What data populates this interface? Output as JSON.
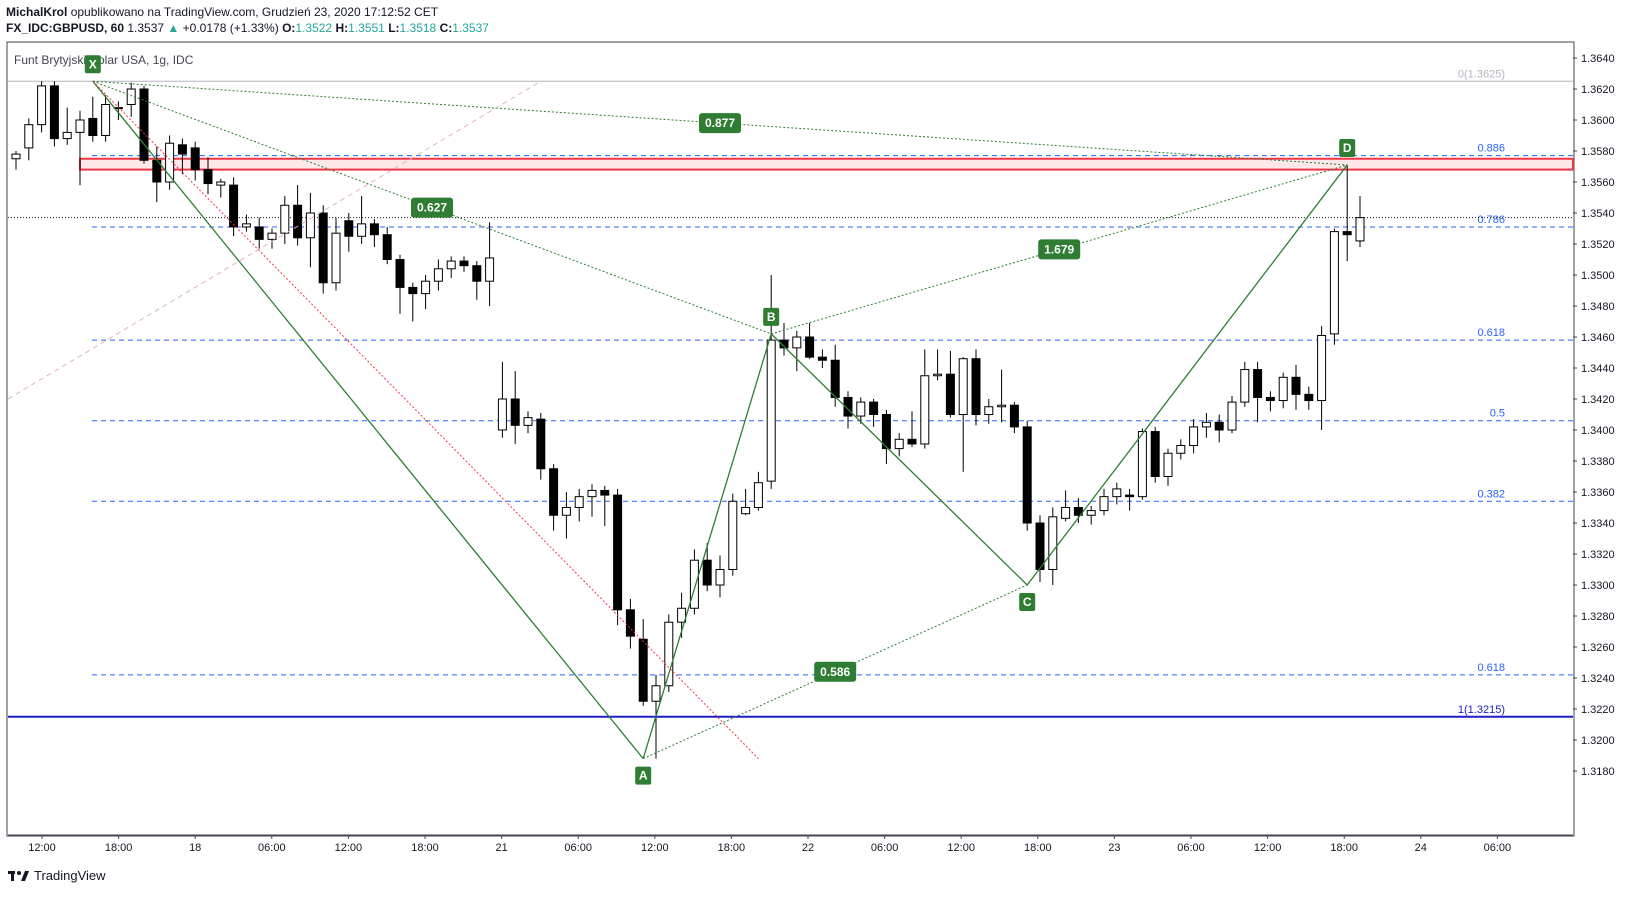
{
  "header": {
    "author": "MichalKrol",
    "published": "opublikowano na TradingView.com, Grudzień 23, 2020 17:12:52 CET",
    "symbol": "FX_IDC:GBPUSD, 60",
    "last": "1.3537",
    "change_arrow": "▲",
    "change": "+0.0178 (+1.33%)",
    "o_label": "O:",
    "o_value": "1.3522",
    "h_label": "H:",
    "h_value": "1.3551",
    "l_label": "L:",
    "l_value": "1.3518",
    "c_label": "C:",
    "c_value": "1.3537"
  },
  "footer": {
    "brand": "TradingView",
    "logo_icon": "tradingview-logo-icon"
  },
  "colors": {
    "up": "#ffffff",
    "down": "#000000",
    "pattern": "#2e7d32",
    "zone": "#f23645",
    "support": "#1e1ec8",
    "fib": "#2962ff"
  },
  "chart_data": {
    "type": "candlestick",
    "title": "Funt Brytyjski/Dolar USA, 1g, IDC",
    "y_ticks": [
      "1.3640",
      "1.3620",
      "1.3600",
      "1.3580",
      "1.3560",
      "1.3540",
      "1.3520",
      "1.3500",
      "1.3480",
      "1.3460",
      "1.3440",
      "1.3420",
      "1.3400",
      "1.3380",
      "1.3360",
      "1.3340",
      "1.3320",
      "1.3300",
      "1.3280",
      "1.3260",
      "1.3240",
      "1.3220",
      "1.3200",
      "1.3180"
    ],
    "ylim": [
      1.3168,
      1.3648
    ],
    "x_ticks": [
      "12:00",
      "18:00",
      "18",
      "06:00",
      "12:00",
      "18:00",
      "21",
      "06:00",
      "12:00",
      "18:00",
      "22",
      "06:00",
      "12:00",
      "18:00",
      "23",
      "06:00",
      "12:00",
      "18:00",
      "24",
      "06:00"
    ],
    "fib_levels": [
      {
        "label": "0(1.3625)",
        "value": 1.3625,
        "style": "solid-gray"
      },
      {
        "label": "0.886",
        "value": 1.3577,
        "style": "dashed"
      },
      {
        "label": "0.786",
        "value": 1.3531,
        "style": "dashed"
      },
      {
        "label": "0.618",
        "value": 1.3458,
        "style": "dashed"
      },
      {
        "label": "0.5",
        "value": 1.3406,
        "style": "dashed"
      },
      {
        "label": "0.382",
        "value": 1.3354,
        "style": "dashed"
      },
      {
        "label": "0.618",
        "value": 1.3242,
        "style": "dashed"
      },
      {
        "label": "1(1.3215)",
        "value": 1.3215,
        "style": "solid-blue"
      }
    ],
    "current_price": 1.3537,
    "resistance_zone": [
      1.3568,
      1.3575
    ],
    "pattern_points": [
      {
        "label": "X",
        "value": 1.3625
      },
      {
        "label": "A",
        "value": 1.3188
      },
      {
        "label": "B",
        "value": 1.3462
      },
      {
        "label": "C",
        "value": 1.33
      },
      {
        "label": "D",
        "value": 1.3571
      }
    ],
    "ratios": [
      "0.877",
      "0.627",
      "1.679",
      "0.586"
    ],
    "candles": [
      {
        "o": 1.3575,
        "h": 1.358,
        "l": 1.3568,
        "c": 1.3578
      },
      {
        "o": 1.3582,
        "h": 1.3601,
        "l": 1.3574,
        "c": 1.3597
      },
      {
        "o": 1.3597,
        "h": 1.3625,
        "l": 1.3592,
        "c": 1.3622
      },
      {
        "o": 1.3622,
        "h": 1.3625,
        "l": 1.3583,
        "c": 1.3588
      },
      {
        "o": 1.3588,
        "h": 1.3608,
        "l": 1.3584,
        "c": 1.3592
      },
      {
        "o": 1.3592,
        "h": 1.3606,
        "l": 1.3558,
        "c": 1.36
      },
      {
        "o": 1.3601,
        "h": 1.3615,
        "l": 1.3586,
        "c": 1.359
      },
      {
        "o": 1.359,
        "h": 1.3616,
        "l": 1.3586,
        "c": 1.361
      },
      {
        "o": 1.3608,
        "h": 1.3612,
        "l": 1.36,
        "c": 1.3608
      },
      {
        "o": 1.361,
        "h": 1.3624,
        "l": 1.3602,
        "c": 1.362
      },
      {
        "o": 1.362,
        "h": 1.3622,
        "l": 1.3572,
        "c": 1.3574
      },
      {
        "o": 1.3574,
        "h": 1.3583,
        "l": 1.3547,
        "c": 1.356
      },
      {
        "o": 1.356,
        "h": 1.359,
        "l": 1.3555,
        "c": 1.3585
      },
      {
        "o": 1.3584,
        "h": 1.3588,
        "l": 1.3565,
        "c": 1.3578
      },
      {
        "o": 1.3582,
        "h": 1.3586,
        "l": 1.3561,
        "c": 1.3568
      },
      {
        "o": 1.3568,
        "h": 1.3576,
        "l": 1.3552,
        "c": 1.3559
      },
      {
        "o": 1.3558,
        "h": 1.3562,
        "l": 1.355,
        "c": 1.356
      },
      {
        "o": 1.3558,
        "h": 1.3563,
        "l": 1.3525,
        "c": 1.3531
      },
      {
        "o": 1.3531,
        "h": 1.3539,
        "l": 1.3528,
        "c": 1.3533
      },
      {
        "o": 1.3531,
        "h": 1.3537,
        "l": 1.3517,
        "c": 1.3523
      },
      {
        "o": 1.3523,
        "h": 1.353,
        "l": 1.3517,
        "c": 1.3527
      },
      {
        "o": 1.3527,
        "h": 1.3551,
        "l": 1.352,
        "c": 1.3545
      },
      {
        "o": 1.3545,
        "h": 1.3558,
        "l": 1.3519,
        "c": 1.3524
      },
      {
        "o": 1.3524,
        "h": 1.3553,
        "l": 1.3505,
        "c": 1.354
      },
      {
        "o": 1.354,
        "h": 1.3545,
        "l": 1.3488,
        "c": 1.3495
      },
      {
        "o": 1.3495,
        "h": 1.3537,
        "l": 1.349,
        "c": 1.3527
      },
      {
        "o": 1.3535,
        "h": 1.354,
        "l": 1.3515,
        "c": 1.3525
      },
      {
        "o": 1.3525,
        "h": 1.3551,
        "l": 1.352,
        "c": 1.3533
      },
      {
        "o": 1.3533,
        "h": 1.3536,
        "l": 1.3518,
        "c": 1.3526
      },
      {
        "o": 1.3526,
        "h": 1.3531,
        "l": 1.3507,
        "c": 1.351
      },
      {
        "o": 1.351,
        "h": 1.3513,
        "l": 1.3475,
        "c": 1.3492
      },
      {
        "o": 1.3492,
        "h": 1.3495,
        "l": 1.347,
        "c": 1.3488
      },
      {
        "o": 1.3488,
        "h": 1.35,
        "l": 1.3478,
        "c": 1.3496
      },
      {
        "o": 1.3496,
        "h": 1.351,
        "l": 1.349,
        "c": 1.3504
      },
      {
        "o": 1.3504,
        "h": 1.3512,
        "l": 1.3498,
        "c": 1.3509
      },
      {
        "o": 1.3509,
        "h": 1.3512,
        "l": 1.3502,
        "c": 1.3506
      },
      {
        "o": 1.3506,
        "h": 1.3509,
        "l": 1.3484,
        "c": 1.3496
      },
      {
        "o": 1.3496,
        "h": 1.3534,
        "l": 1.348,
        "c": 1.3511
      },
      {
        "o": 1.34,
        "h": 1.3444,
        "l": 1.3395,
        "c": 1.342
      },
      {
        "o": 1.342,
        "h": 1.3438,
        "l": 1.3391,
        "c": 1.3403
      },
      {
        "o": 1.3403,
        "h": 1.3412,
        "l": 1.3398,
        "c": 1.3408
      },
      {
        "o": 1.3407,
        "h": 1.3411,
        "l": 1.3368,
        "c": 1.3375
      },
      {
        "o": 1.3375,
        "h": 1.3378,
        "l": 1.3335,
        "c": 1.3345
      },
      {
        "o": 1.3345,
        "h": 1.336,
        "l": 1.333,
        "c": 1.335
      },
      {
        "o": 1.335,
        "h": 1.3362,
        "l": 1.3341,
        "c": 1.3357
      },
      {
        "o": 1.3357,
        "h": 1.3365,
        "l": 1.3344,
        "c": 1.3361
      },
      {
        "o": 1.3361,
        "h": 1.3364,
        "l": 1.3338,
        "c": 1.3358
      },
      {
        "o": 1.3358,
        "h": 1.3362,
        "l": 1.3274,
        "c": 1.3284
      },
      {
        "o": 1.3284,
        "h": 1.3291,
        "l": 1.3259,
        "c": 1.3267
      },
      {
        "o": 1.3265,
        "h": 1.3278,
        "l": 1.3222,
        "c": 1.3225
      },
      {
        "o": 1.3225,
        "h": 1.3242,
        "l": 1.3188,
        "c": 1.3235
      },
      {
        "o": 1.3235,
        "h": 1.3281,
        "l": 1.3231,
        "c": 1.3276
      },
      {
        "o": 1.3276,
        "h": 1.3295,
        "l": 1.3266,
        "c": 1.3285
      },
      {
        "o": 1.3285,
        "h": 1.3323,
        "l": 1.3281,
        "c": 1.3316
      },
      {
        "o": 1.3316,
        "h": 1.3327,
        "l": 1.3296,
        "c": 1.33
      },
      {
        "o": 1.33,
        "h": 1.3319,
        "l": 1.3292,
        "c": 1.331
      },
      {
        "o": 1.331,
        "h": 1.3359,
        "l": 1.3306,
        "c": 1.3354
      },
      {
        "o": 1.3346,
        "h": 1.3362,
        "l": 1.3345,
        "c": 1.335
      },
      {
        "o": 1.335,
        "h": 1.3373,
        "l": 1.3348,
        "c": 1.3366
      },
      {
        "o": 1.3367,
        "h": 1.35,
        "l": 1.3362,
        "c": 1.3458
      },
      {
        "o": 1.3458,
        "h": 1.3469,
        "l": 1.3448,
        "c": 1.3453
      },
      {
        "o": 1.3453,
        "h": 1.3464,
        "l": 1.3438,
        "c": 1.346
      },
      {
        "o": 1.346,
        "h": 1.3469,
        "l": 1.3446,
        "c": 1.3447
      },
      {
        "o": 1.3447,
        "h": 1.3452,
        "l": 1.344,
        "c": 1.3445
      },
      {
        "o": 1.3445,
        "h": 1.3455,
        "l": 1.3415,
        "c": 1.3421
      },
      {
        "o": 1.3421,
        "h": 1.3425,
        "l": 1.3401,
        "c": 1.3409
      },
      {
        "o": 1.3409,
        "h": 1.3421,
        "l": 1.3404,
        "c": 1.3418
      },
      {
        "o": 1.3418,
        "h": 1.342,
        "l": 1.3402,
        "c": 1.341
      },
      {
        "o": 1.341,
        "h": 1.3413,
        "l": 1.3378,
        "c": 1.3388
      },
      {
        "o": 1.3388,
        "h": 1.3398,
        "l": 1.3383,
        "c": 1.3394
      },
      {
        "o": 1.3394,
        "h": 1.3412,
        "l": 1.3389,
        "c": 1.3391
      },
      {
        "o": 1.3391,
        "h": 1.3452,
        "l": 1.3388,
        "c": 1.3435
      },
      {
        "o": 1.3435,
        "h": 1.3452,
        "l": 1.3432,
        "c": 1.3436
      },
      {
        "o": 1.3436,
        "h": 1.3451,
        "l": 1.3408,
        "c": 1.341
      },
      {
        "o": 1.341,
        "h": 1.3447,
        "l": 1.3373,
        "c": 1.3446
      },
      {
        "o": 1.3446,
        "h": 1.3452,
        "l": 1.3403,
        "c": 1.341
      },
      {
        "o": 1.341,
        "h": 1.342,
        "l": 1.3404,
        "c": 1.3415
      },
      {
        "o": 1.3415,
        "h": 1.3439,
        "l": 1.3405,
        "c": 1.3416
      },
      {
        "o": 1.3416,
        "h": 1.3418,
        "l": 1.3398,
        "c": 1.3402
      },
      {
        "o": 1.3402,
        "h": 1.3406,
        "l": 1.3335,
        "c": 1.334
      },
      {
        "o": 1.334,
        "h": 1.3345,
        "l": 1.3302,
        "c": 1.331
      },
      {
        "o": 1.331,
        "h": 1.335,
        "l": 1.33,
        "c": 1.3344
      },
      {
        "o": 1.3343,
        "h": 1.3361,
        "l": 1.3341,
        "c": 1.335
      },
      {
        "o": 1.335,
        "h": 1.3356,
        "l": 1.334,
        "c": 1.3345
      },
      {
        "o": 1.3345,
        "h": 1.3351,
        "l": 1.3339,
        "c": 1.3348
      },
      {
        "o": 1.3348,
        "h": 1.3362,
        "l": 1.3345,
        "c": 1.3357
      },
      {
        "o": 1.3357,
        "h": 1.3366,
        "l": 1.3352,
        "c": 1.3362
      },
      {
        "o": 1.3358,
        "h": 1.3362,
        "l": 1.3348,
        "c": 1.3357
      },
      {
        "o": 1.3357,
        "h": 1.3401,
        "l": 1.3355,
        "c": 1.3399
      },
      {
        "o": 1.3399,
        "h": 1.3402,
        "l": 1.3366,
        "c": 1.337
      },
      {
        "o": 1.337,
        "h": 1.3388,
        "l": 1.3364,
        "c": 1.3385
      },
      {
        "o": 1.3385,
        "h": 1.3394,
        "l": 1.3381,
        "c": 1.339
      },
      {
        "o": 1.339,
        "h": 1.3407,
        "l": 1.3385,
        "c": 1.3402
      },
      {
        "o": 1.3402,
        "h": 1.3411,
        "l": 1.3395,
        "c": 1.3405
      },
      {
        "o": 1.3405,
        "h": 1.341,
        "l": 1.3392,
        "c": 1.34
      },
      {
        "o": 1.34,
        "h": 1.3422,
        "l": 1.3398,
        "c": 1.3418
      },
      {
        "o": 1.3418,
        "h": 1.3444,
        "l": 1.3415,
        "c": 1.3439
      },
      {
        "o": 1.3439,
        "h": 1.3444,
        "l": 1.3405,
        "c": 1.3421
      },
      {
        "o": 1.3421,
        "h": 1.3425,
        "l": 1.3412,
        "c": 1.3419
      },
      {
        "o": 1.3419,
        "h": 1.3437,
        "l": 1.3414,
        "c": 1.3434
      },
      {
        "o": 1.3434,
        "h": 1.3442,
        "l": 1.3413,
        "c": 1.3423
      },
      {
        "o": 1.3423,
        "h": 1.3428,
        "l": 1.3413,
        "c": 1.3419
      },
      {
        "o": 1.3419,
        "h": 1.3467,
        "l": 1.34,
        "c": 1.3461
      },
      {
        "o": 1.3462,
        "h": 1.353,
        "l": 1.3455,
        "c": 1.3528
      },
      {
        "o": 1.3528,
        "h": 1.3571,
        "l": 1.3509,
        "c": 1.3526
      },
      {
        "o": 1.3522,
        "h": 1.3551,
        "l": 1.3518,
        "c": 1.3537
      }
    ]
  }
}
